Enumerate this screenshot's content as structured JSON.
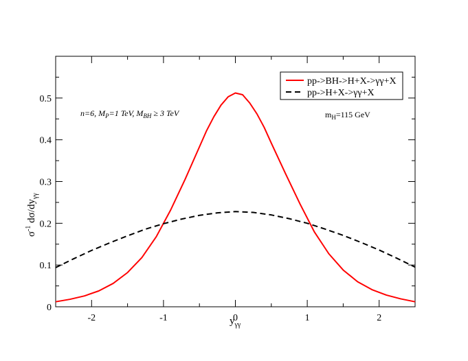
{
  "chart_data": {
    "type": "line",
    "title": "",
    "xlabel_base": "y",
    "xlabel_sub": "γγ",
    "ylabel_base": "σ",
    "ylabel_sup": "-1",
    "ylabel_mid": " dσ/dy",
    "ylabel_sub": "γγ",
    "xlim": [
      -2.5,
      2.5
    ],
    "ylim": [
      0,
      0.6
    ],
    "x_ticks": [
      -2,
      -1,
      0,
      1,
      2
    ],
    "x_tick_labels": [
      "-2",
      "-1",
      "0",
      "1",
      "2"
    ],
    "y_ticks": [
      0,
      0.1,
      0.2,
      0.3,
      0.4,
      0.5
    ],
    "y_tick_labels": [
      "0",
      "0.1",
      "0.2",
      "0.3",
      "0.4",
      "0.5"
    ],
    "grid": false,
    "legend_position": "top-right",
    "series": [
      {
        "name": "pp->BH->H+X->γγ+X",
        "color": "#ff0000",
        "dash": "solid",
        "x": [
          -2.5,
          -2.3,
          -2.1,
          -1.9,
          -1.7,
          -1.5,
          -1.3,
          -1.1,
          -0.9,
          -0.7,
          -0.5,
          -0.4,
          -0.3,
          -0.2,
          -0.1,
          0.0,
          0.1,
          0.2,
          0.3,
          0.4,
          0.5,
          0.7,
          0.9,
          1.1,
          1.3,
          1.5,
          1.7,
          1.9,
          2.1,
          2.3,
          2.5
        ],
        "y": [
          0.012,
          0.018,
          0.026,
          0.038,
          0.056,
          0.082,
          0.118,
          0.168,
          0.232,
          0.305,
          0.383,
          0.422,
          0.455,
          0.483,
          0.503,
          0.512,
          0.508,
          0.488,
          0.462,
          0.43,
          0.392,
          0.318,
          0.246,
          0.179,
          0.127,
          0.088,
          0.06,
          0.041,
          0.028,
          0.019,
          0.012
        ]
      },
      {
        "name": "pp->H+X->γγ+X",
        "color": "#000000",
        "dash": "dashed",
        "x": [
          -2.5,
          -2.25,
          -2.0,
          -1.75,
          -1.5,
          -1.25,
          -1.0,
          -0.75,
          -0.5,
          -0.25,
          0.0,
          0.25,
          0.5,
          0.75,
          1.0,
          1.25,
          1.5,
          1.75,
          2.0,
          2.25,
          2.5
        ],
        "y": [
          0.094,
          0.115,
          0.135,
          0.153,
          0.17,
          0.186,
          0.199,
          0.21,
          0.219,
          0.225,
          0.228,
          0.226,
          0.22,
          0.211,
          0.2,
          0.186,
          0.171,
          0.154,
          0.136,
          0.116,
          0.095
        ]
      }
    ],
    "annotations": {
      "params": "n=6,  M",
      "params_mp_sub": "P",
      "params_mp_val": "=1 TeV,  M",
      "params_mbh_sub": "BH",
      "params_mbh_val": " ≥ 3 TeV",
      "mass_base": "m",
      "mass_sub": "H",
      "mass_val": "=115 GeV"
    }
  }
}
